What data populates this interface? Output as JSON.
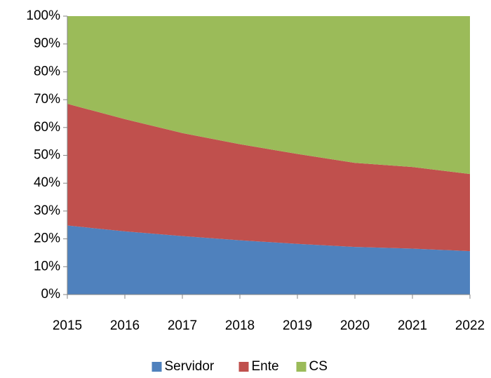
{
  "chart_data": {
    "type": "area",
    "stacked": true,
    "categories": [
      "2015",
      "2016",
      "2017",
      "2018",
      "2019",
      "2020",
      "2021",
      "2022"
    ],
    "series": [
      {
        "name": "Servidor",
        "color": "#4f81bd",
        "values": [
          24.8,
          22.7,
          21.0,
          19.5,
          18.2,
          17.1,
          16.5,
          15.6
        ]
      },
      {
        "name": "Ente",
        "color": "#c0504d",
        "values": [
          43.7,
          40.3,
          37.0,
          34.5,
          32.3,
          30.2,
          29.3,
          27.7
        ]
      },
      {
        "name": "CS",
        "color": "#9bbb59",
        "values": [
          31.5,
          37.0,
          42.0,
          46.0,
          49.5,
          52.7,
          54.2,
          56.7
        ]
      }
    ],
    "ylim": [
      0,
      100
    ],
    "yticks": [
      {
        "value": 0,
        "label": "0%"
      },
      {
        "value": 10,
        "label": "10%"
      },
      {
        "value": 20,
        "label": "20%"
      },
      {
        "value": 30,
        "label": "30%"
      },
      {
        "value": 40,
        "label": "40%"
      },
      {
        "value": 50,
        "label": "50%"
      },
      {
        "value": 60,
        "label": "60%"
      },
      {
        "value": 70,
        "label": "70%"
      },
      {
        "value": 80,
        "label": "80%"
      },
      {
        "value": 90,
        "label": "90%"
      },
      {
        "value": 100,
        "label": "100%"
      }
    ],
    "legend": "bottom"
  }
}
